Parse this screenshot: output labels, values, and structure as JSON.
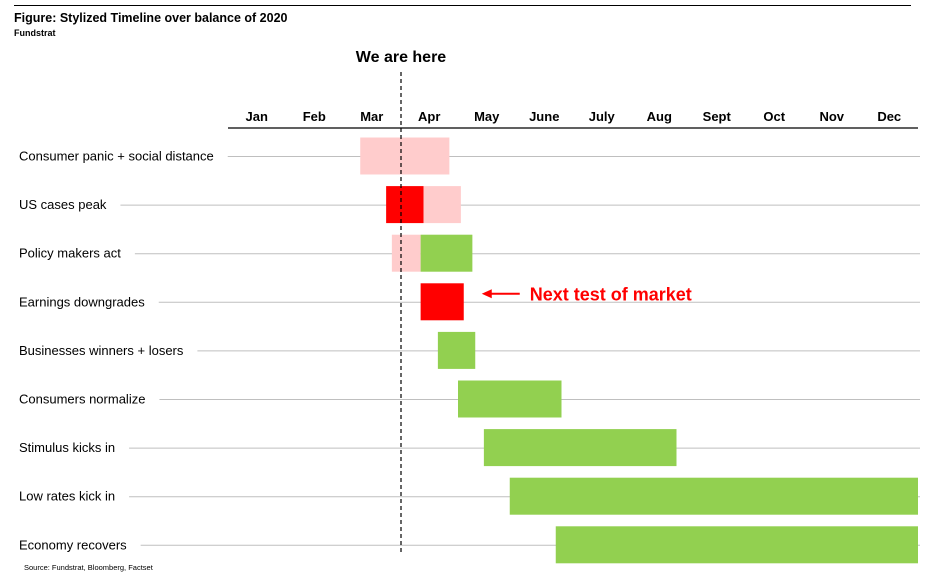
{
  "title": "Figure: Stylized Timeline over balance of 2020",
  "subtitle": "Fundstrat",
  "source": "Source: Fundstrat, Bloomberg, Factset",
  "chart_data": {
    "type": "gantt",
    "months": [
      "Jan",
      "Feb",
      "Mar",
      "Apr",
      "May",
      "June",
      "July",
      "Aug",
      "Sept",
      "Oct",
      "Nov",
      "Dec"
    ],
    "x_unit": "month (0 = start of Jan, 12 = end of Dec)",
    "xlim": [
      0,
      12
    ],
    "legend": "none",
    "colors": {
      "light": "#ffcccc",
      "red": "#ff0000",
      "green": "#92d050"
    },
    "marker": {
      "label": "We are here",
      "x": 3.0
    },
    "tasks": [
      {
        "label": "Consumer panic + social distance",
        "bars": [
          {
            "start": 2.3,
            "end": 3.85,
            "color": "light"
          }
        ]
      },
      {
        "label": "US cases peak",
        "bars": [
          {
            "start": 2.75,
            "end": 3.4,
            "color": "red"
          },
          {
            "start": 3.4,
            "end": 4.05,
            "color": "light"
          }
        ]
      },
      {
        "label": "Policy makers act",
        "bars": [
          {
            "start": 2.85,
            "end": 3.35,
            "color": "light"
          },
          {
            "start": 3.35,
            "end": 4.25,
            "color": "green"
          }
        ]
      },
      {
        "label": "Earnings downgrades",
        "bars": [
          {
            "start": 3.35,
            "end": 4.1,
            "color": "red"
          }
        ]
      },
      {
        "label": "Businesses winners + losers",
        "bars": [
          {
            "start": 3.65,
            "end": 4.3,
            "color": "green"
          }
        ]
      },
      {
        "label": "Consumers normalize",
        "bars": [
          {
            "start": 4.0,
            "end": 5.8,
            "color": "green"
          }
        ]
      },
      {
        "label": "Stimulus kicks in",
        "bars": [
          {
            "start": 4.45,
            "end": 7.8,
            "color": "green"
          }
        ]
      },
      {
        "label": "Low rates kick in",
        "bars": [
          {
            "start": 4.9,
            "end": 12.0,
            "color": "green"
          }
        ]
      },
      {
        "label": "Economy recovers",
        "bars": [
          {
            "start": 5.7,
            "end": 12.0,
            "color": "green"
          }
        ]
      }
    ],
    "annotations": [
      {
        "text": "Next test of market",
        "task": "Earnings downgrades",
        "color": "#ff0000",
        "arrow": "left"
      }
    ]
  }
}
